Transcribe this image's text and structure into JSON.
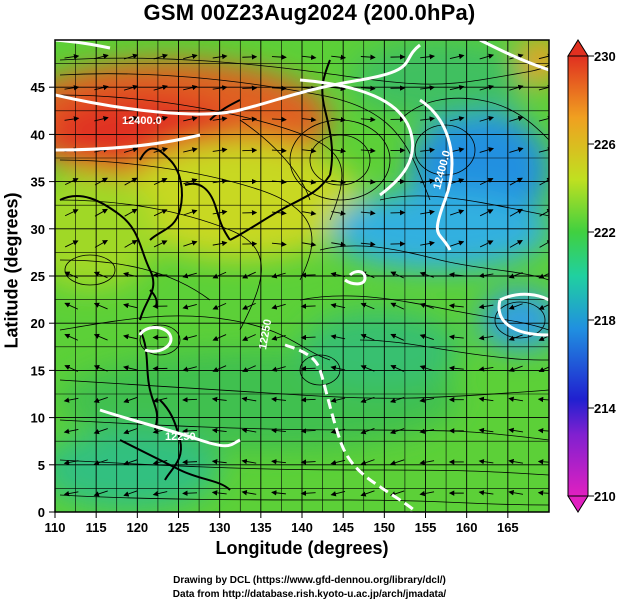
{
  "title": "GSM 00Z23Aug2024 (200.0hPa)",
  "x_axis": {
    "label": "Longitude (degrees)",
    "ticks": [
      "110",
      "115",
      "120",
      "125",
      "130",
      "135",
      "140",
      "145",
      "150",
      "155",
      "160",
      "165"
    ]
  },
  "y_axis": {
    "label": "Latitude (degrees)",
    "ticks": [
      "0",
      "5",
      "10",
      "15",
      "20",
      "25",
      "30",
      "35",
      "40",
      "45"
    ]
  },
  "colorbar": {
    "ticks": [
      "210",
      "214",
      "218",
      "222",
      "226",
      "230"
    ],
    "colors": [
      "#e020c0",
      "#2020d0",
      "#2090e0",
      "#20d0a0",
      "#40d040",
      "#c0e020",
      "#f0a020",
      "#e03020"
    ]
  },
  "contour_labels": [
    "12400.0",
    "12400.0",
    "12250",
    "12250"
  ],
  "credits": {
    "line1": "Drawing by DCL (https://www.gfd-dennou.org/library/dcl/)",
    "line2": "Data from http://database.rish.kyoto-u.ac.jp/arch/jmadata/"
  }
}
